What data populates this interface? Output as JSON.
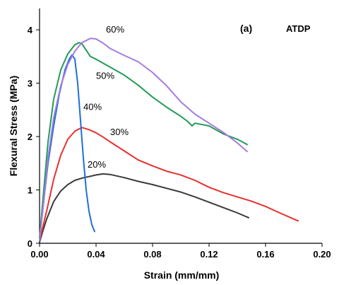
{
  "chart_data": {
    "type": "line",
    "panel_label": "(a)",
    "sample_label": "ATDP",
    "xlabel": "Strain (mm/mm)",
    "ylabel": "Flexural Stress (MPa)",
    "xlim": [
      0.0,
      0.2
    ],
    "ylim": [
      0,
      4.4
    ],
    "xticks": [
      "0.00",
      "0.04",
      "0.08",
      "0.12",
      "0.16",
      "0.20"
    ],
    "yticks": [
      "0",
      "1",
      "2",
      "3",
      "4"
    ],
    "grid": false,
    "legend": "inline labels",
    "series": [
      {
        "name": "20%",
        "color": "#3a3a3a",
        "x": [
          0.0,
          0.002,
          0.005,
          0.01,
          0.015,
          0.02,
          0.025,
          0.03,
          0.035,
          0.04,
          0.045,
          0.05,
          0.06,
          0.07,
          0.08,
          0.09,
          0.1,
          0.11,
          0.12,
          0.13,
          0.14,
          0.148
        ],
        "y": [
          0.02,
          0.2,
          0.45,
          0.78,
          0.98,
          1.1,
          1.18,
          1.22,
          1.25,
          1.28,
          1.3,
          1.29,
          1.23,
          1.16,
          1.1,
          1.03,
          0.96,
          0.87,
          0.77,
          0.67,
          0.57,
          0.48
        ]
      },
      {
        "name": "30%",
        "color": "#e8302e",
        "x": [
          0.0,
          0.005,
          0.01,
          0.015,
          0.02,
          0.025,
          0.03,
          0.035,
          0.04,
          0.045,
          0.05,
          0.06,
          0.07,
          0.08,
          0.09,
          0.1,
          0.11,
          0.12,
          0.13,
          0.14,
          0.15,
          0.16,
          0.17,
          0.183
        ],
        "y": [
          0.05,
          0.6,
          1.2,
          1.65,
          1.95,
          2.1,
          2.17,
          2.13,
          2.07,
          1.99,
          1.9,
          1.73,
          1.56,
          1.45,
          1.35,
          1.28,
          1.18,
          1.05,
          0.95,
          0.87,
          0.79,
          0.69,
          0.57,
          0.42
        ]
      },
      {
        "name": "40%",
        "color": "#1f6fd6",
        "x": [
          0.0,
          0.003,
          0.006,
          0.01,
          0.014,
          0.018,
          0.021,
          0.023,
          0.025,
          0.027,
          0.029,
          0.031,
          0.033,
          0.035,
          0.037,
          0.039
        ],
        "y": [
          0.1,
          0.8,
          1.5,
          2.2,
          2.8,
          3.25,
          3.45,
          3.53,
          3.45,
          3.0,
          2.3,
          1.6,
          1.0,
          0.6,
          0.35,
          0.22
        ]
      },
      {
        "name": "50%",
        "color": "#239b56",
        "x": [
          0.0,
          0.003,
          0.006,
          0.01,
          0.015,
          0.02,
          0.025,
          0.028,
          0.03,
          0.033,
          0.036,
          0.04,
          0.05,
          0.06,
          0.07,
          0.08,
          0.09,
          0.1,
          0.105,
          0.108,
          0.11,
          0.12,
          0.13,
          0.14,
          0.147
        ],
        "y": [
          0.1,
          1.0,
          1.9,
          2.7,
          3.25,
          3.55,
          3.72,
          3.76,
          3.74,
          3.62,
          3.5,
          3.45,
          3.3,
          3.15,
          2.96,
          2.74,
          2.55,
          2.38,
          2.28,
          2.2,
          2.25,
          2.2,
          2.05,
          1.95,
          1.85
        ]
      },
      {
        "name": "60%",
        "color": "#a57be0",
        "x": [
          0.0,
          0.003,
          0.006,
          0.01,
          0.015,
          0.02,
          0.025,
          0.03,
          0.033,
          0.036,
          0.04,
          0.045,
          0.05,
          0.06,
          0.07,
          0.08,
          0.09,
          0.1,
          0.11,
          0.12,
          0.13,
          0.14,
          0.147
        ],
        "y": [
          0.05,
          0.8,
          1.6,
          2.35,
          2.95,
          3.35,
          3.6,
          3.76,
          3.8,
          3.84,
          3.83,
          3.75,
          3.65,
          3.52,
          3.4,
          3.2,
          2.95,
          2.65,
          2.42,
          2.25,
          2.08,
          1.88,
          1.72
        ]
      }
    ],
    "annotations": [
      {
        "text": "60%",
        "x": 0.047,
        "y": 3.95
      },
      {
        "text": "50%",
        "x": 0.04,
        "y": 3.08
      },
      {
        "text": "40%",
        "x": 0.031,
        "y": 2.5
      },
      {
        "text": "30%",
        "x": 0.05,
        "y": 2.03
      },
      {
        "text": "20%",
        "x": 0.034,
        "y": 1.42
      }
    ]
  }
}
